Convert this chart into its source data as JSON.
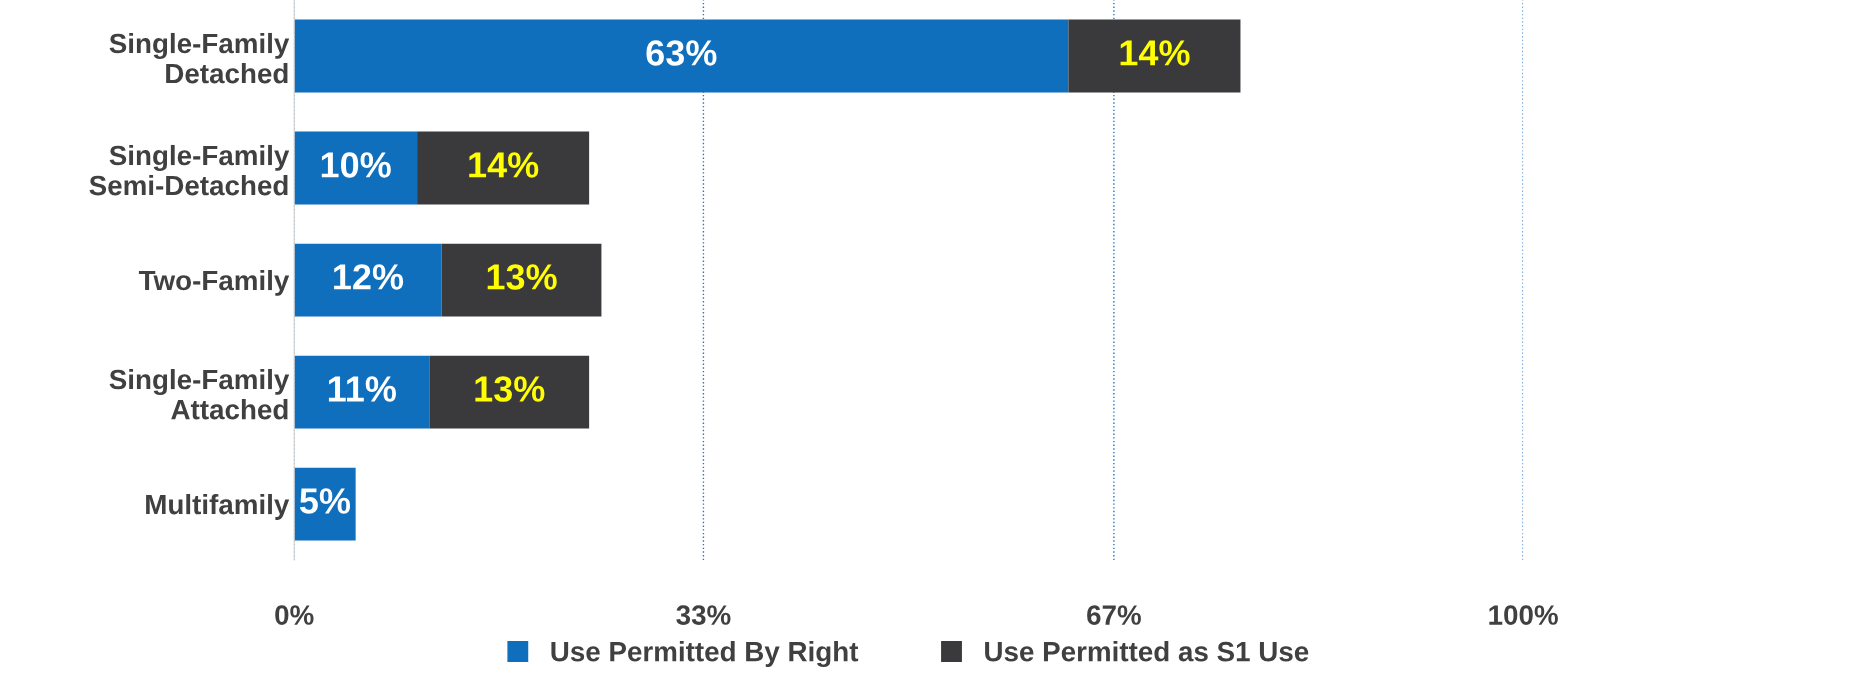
{
  "chart_data": {
    "type": "bar",
    "orientation": "horizontal",
    "stacked": true,
    "categories": [
      "Single-Family\nDetached",
      "Single-Family\nSemi-Detached",
      "Two-Family",
      "Single-Family\nAttached",
      "Multifamily"
    ],
    "series": [
      {
        "name": "Use Permitted By Right",
        "color": "#0f6fbd",
        "values": [
          63,
          10,
          12,
          11,
          5
        ],
        "value_labels": [
          "63%",
          "10%",
          "12%",
          "11%",
          "5%"
        ]
      },
      {
        "name": "Use Permitted as S1 Use",
        "color": "#3a3a3c",
        "values": [
          14,
          14,
          13,
          13,
          null
        ],
        "value_labels": [
          "14%",
          "14%",
          "13%",
          "13%",
          null
        ]
      }
    ],
    "xlim": [
      0,
      100
    ],
    "xticks": [
      {
        "value": 0,
        "label": "0%"
      },
      {
        "value": 33.3,
        "label": "33%"
      },
      {
        "value": 66.7,
        "label": "67%"
      },
      {
        "value": 100,
        "label": "100%"
      }
    ],
    "grid": "x",
    "legend": "bottom"
  }
}
